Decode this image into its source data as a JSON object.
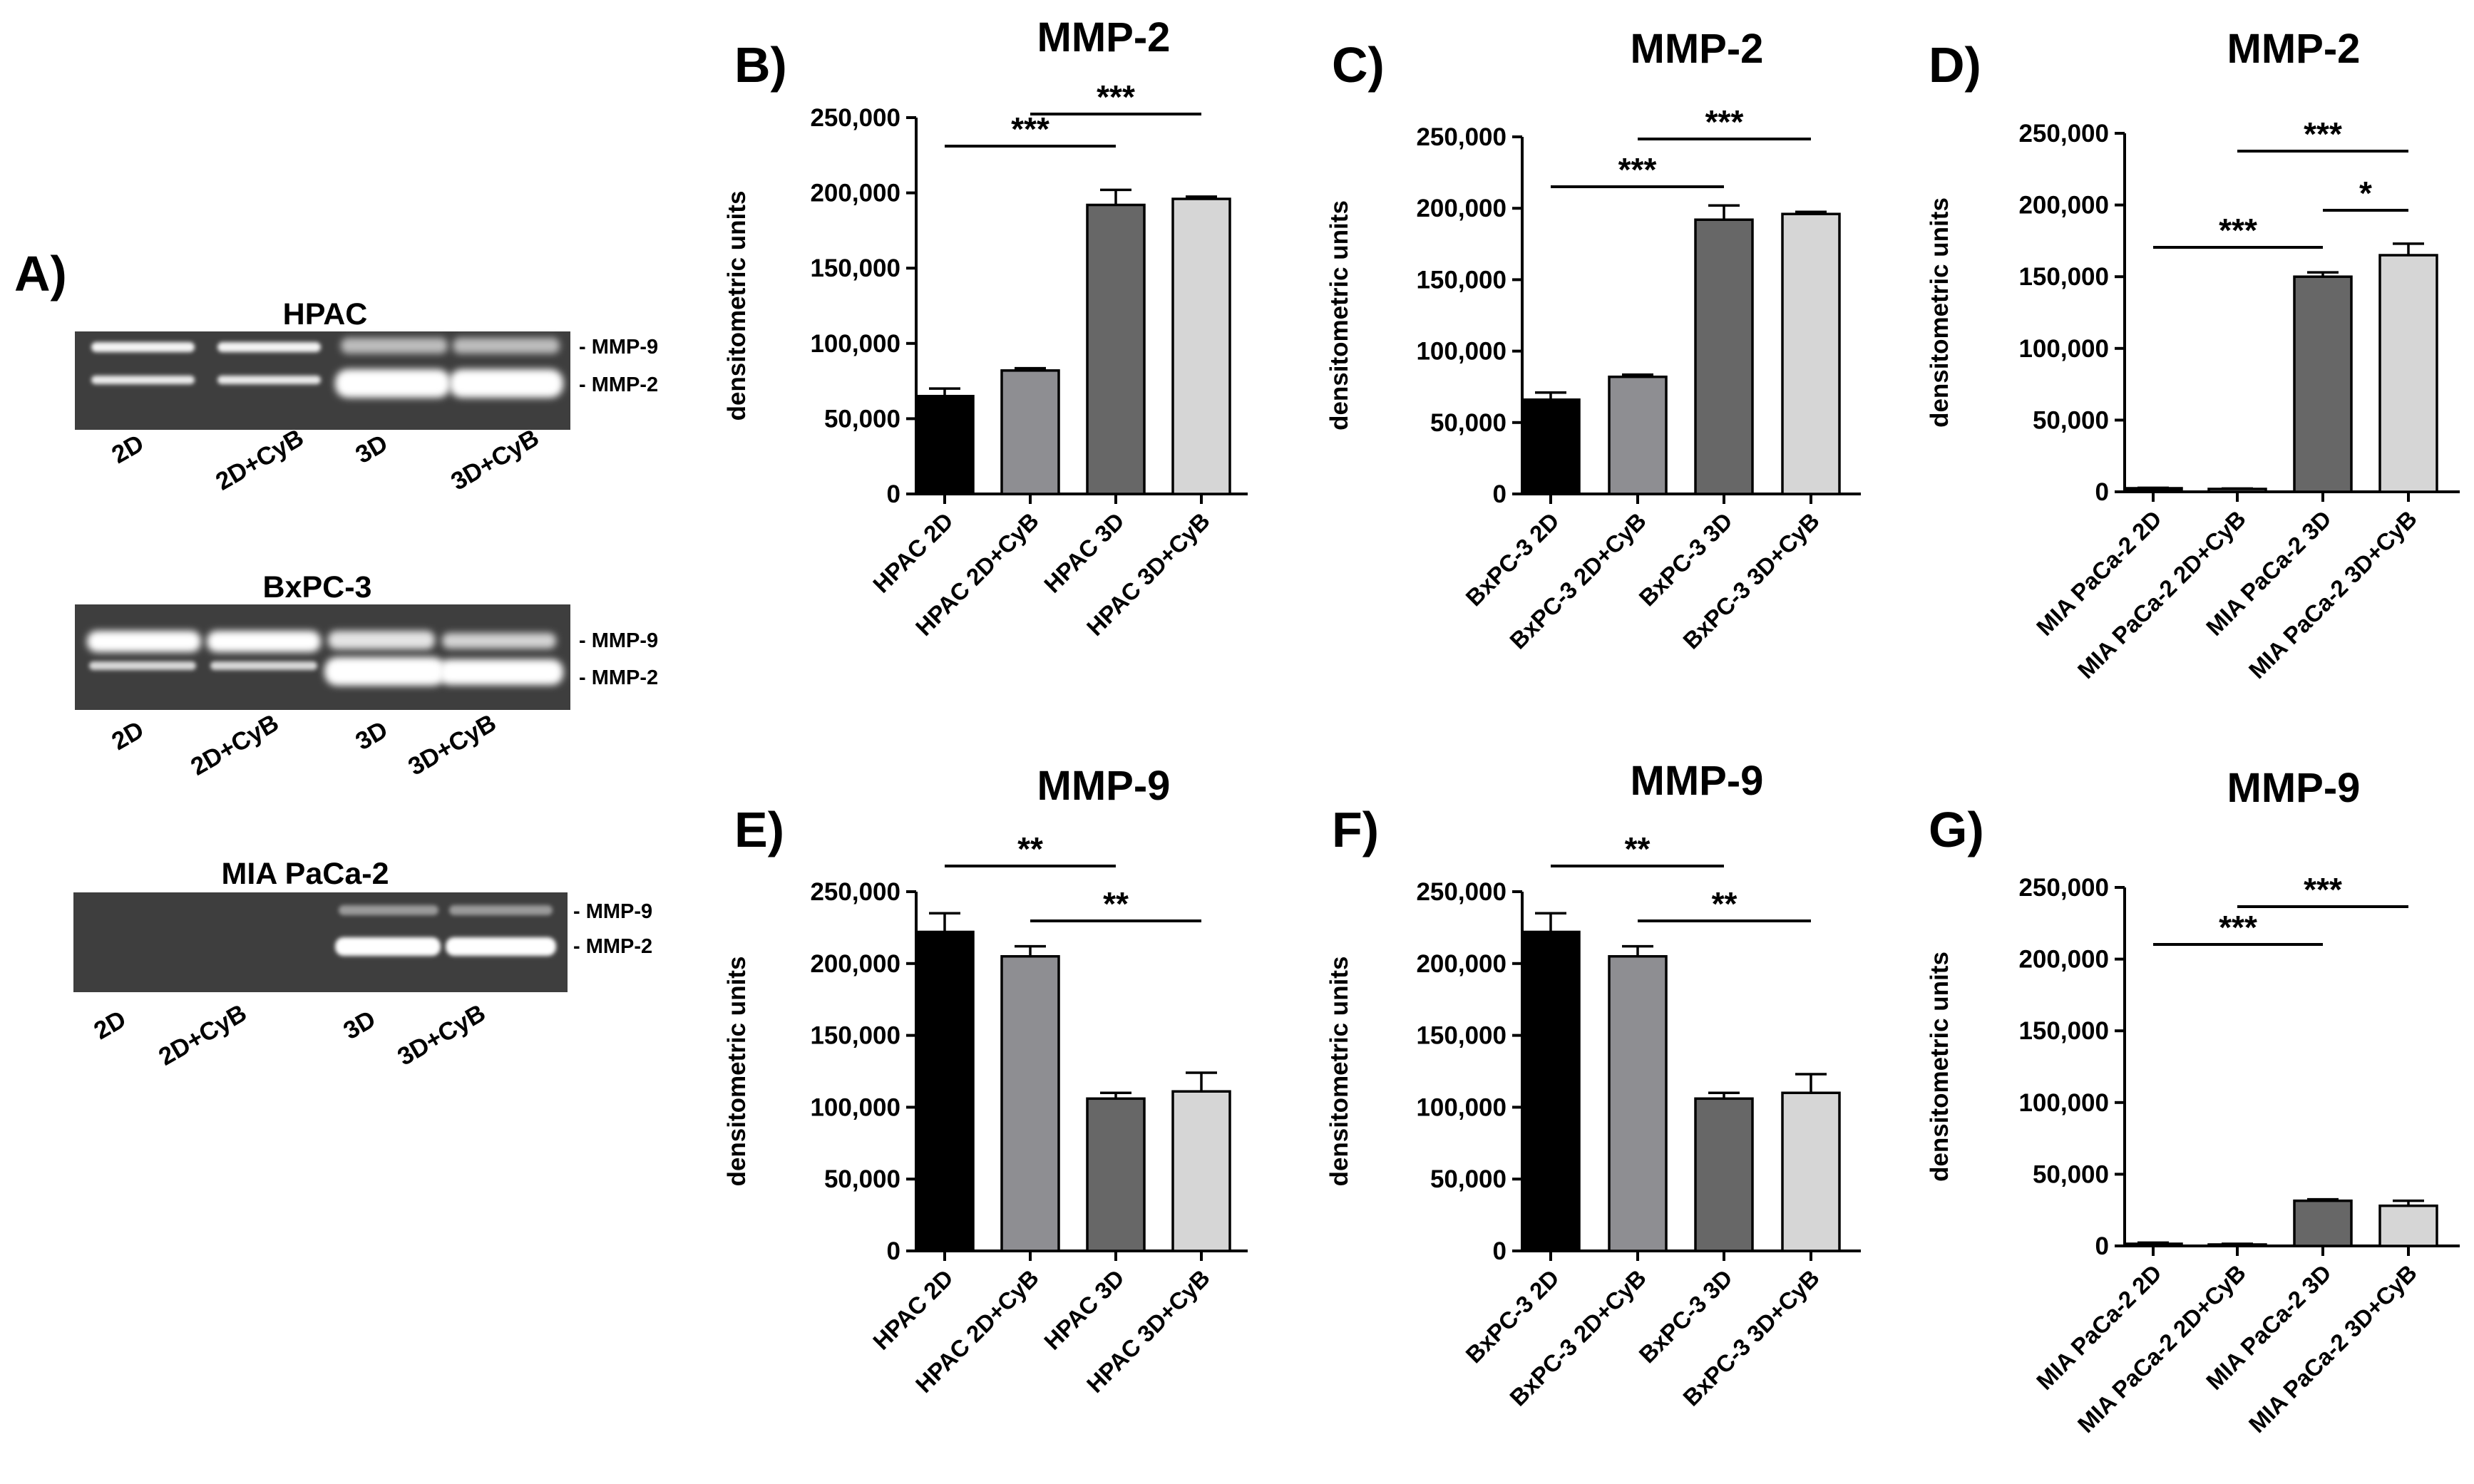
{
  "panel_a": {
    "label": "A)",
    "blots": [
      {
        "title": "HPAC",
        "lanes": [
          "2D",
          "2D+CyB",
          "3D",
          "3D+CyB"
        ],
        "band_labels": [
          "- MMP-9",
          "- MMP-2"
        ]
      },
      {
        "title": "BxPC-3",
        "lanes": [
          "2D",
          "2D+CyB",
          "3D",
          "3D+CyB"
        ],
        "band_labels": [
          "- MMP-9",
          "- MMP-2"
        ]
      },
      {
        "title": "MIA PaCa-2",
        "lanes": [
          "2D",
          "2D+CyB",
          "3D",
          "3D+CyB"
        ],
        "band_labels": [
          "- MMP-9",
          "- MMP-2"
        ]
      }
    ]
  },
  "chart_data": [
    {
      "panel": "B)",
      "type": "bar",
      "title": "MMP-2",
      "xlabel": "",
      "ylabel": "densitometric units",
      "categories": [
        "HPAC 2D",
        "HPAC 2D+CyB",
        "HPAC 3D",
        "HPAC 3D+CyB"
      ],
      "values": [
        65000,
        82000,
        192000,
        196000
      ],
      "errors": [
        5000,
        1500,
        10000,
        1500
      ],
      "ylim": [
        0,
        250000
      ],
      "yticks": [
        0,
        50000,
        100000,
        150000,
        200000,
        250000
      ],
      "ytick_labels": [
        "0",
        "50,000",
        "100,000",
        "150,000",
        "200,000",
        "250,000"
      ],
      "colors": [
        "#000000",
        "#8e8e92",
        "#676767",
        "#d6d6d6"
      ],
      "significance": [
        {
          "from": 0,
          "to": 2,
          "label": "***"
        },
        {
          "from": 1,
          "to": 3,
          "label": "***"
        }
      ]
    },
    {
      "panel": "C)",
      "type": "bar",
      "title": "MMP-2",
      "xlabel": "",
      "ylabel": "densitometric units",
      "categories": [
        "BxPC-3 2D",
        "BxPC-3 2D+CyB",
        "BxPC-3 3D",
        "BxPC-3 3D+CyB"
      ],
      "values": [
        66000,
        82000,
        192000,
        196000
      ],
      "errors": [
        5000,
        1500,
        10000,
        1500
      ],
      "ylim": [
        0,
        250000
      ],
      "yticks": [
        0,
        50000,
        100000,
        150000,
        200000,
        250000
      ],
      "ytick_labels": [
        "0",
        "50,000",
        "100,000",
        "150,000",
        "200,000",
        "250,000"
      ],
      "colors": [
        "#000000",
        "#8e8e92",
        "#676767",
        "#d6d6d6"
      ],
      "significance": [
        {
          "from": 0,
          "to": 2,
          "label": "***"
        },
        {
          "from": 1,
          "to": 3,
          "label": "***"
        }
      ]
    },
    {
      "panel": "D)",
      "type": "bar",
      "title": "MMP-2",
      "xlabel": "",
      "ylabel": "densitometric units",
      "categories": [
        "MIA PaCa-2 2D",
        "MIA PaCa-2 2D+CyB",
        "MIA PaCa-2 3D",
        "MIA PaCa-2 3D+CyB"
      ],
      "values": [
        2500,
        2000,
        150000,
        165000
      ],
      "errors": [
        300,
        300,
        3000,
        8000
      ],
      "ylim": [
        0,
        250000
      ],
      "yticks": [
        0,
        50000,
        100000,
        150000,
        200000,
        250000
      ],
      "ytick_labels": [
        "0",
        "50,000",
        "100,000",
        "150,000",
        "200,000",
        "250,000"
      ],
      "colors": [
        "#000000",
        "#8e8e92",
        "#676767",
        "#d6d6d6"
      ],
      "significance": [
        {
          "from": 2,
          "to": 3,
          "label": "*"
        },
        {
          "from": 0,
          "to": 2,
          "label": "***"
        },
        {
          "from": 1,
          "to": 3,
          "label": "***"
        }
      ]
    },
    {
      "panel": "E)",
      "type": "bar",
      "title": "MMP-9",
      "xlabel": "",
      "ylabel": "densitometric units",
      "categories": [
        "HPAC 2D",
        "HPAC 2D+CyB",
        "HPAC 3D",
        "HPAC 3D+CyB"
      ],
      "values": [
        222000,
        205000,
        106000,
        111000
      ],
      "errors": [
        13000,
        7000,
        4000,
        13000
      ],
      "ylim": [
        0,
        250000
      ],
      "yticks": [
        0,
        50000,
        100000,
        150000,
        200000,
        250000
      ],
      "ytick_labels": [
        "0",
        "50,000",
        "100,000",
        "150,000",
        "200,000",
        "250,000"
      ],
      "colors": [
        "#000000",
        "#8e8e92",
        "#676767",
        "#d6d6d6"
      ],
      "significance": [
        {
          "from": 1,
          "to": 3,
          "label": "**"
        },
        {
          "from": 0,
          "to": 2,
          "label": "**"
        }
      ]
    },
    {
      "panel": "F)",
      "type": "bar",
      "title": "MMP-9",
      "xlabel": "",
      "ylabel": "densitometric units",
      "categories": [
        "BxPC-3 2D",
        "BxPC-3 2D+CyB",
        "BxPC-3 3D",
        "BxPC-3 3D+CyB"
      ],
      "values": [
        222000,
        205000,
        106000,
        110000
      ],
      "errors": [
        13000,
        7000,
        4000,
        13000
      ],
      "ylim": [
        0,
        250000
      ],
      "yticks": [
        0,
        50000,
        100000,
        150000,
        200000,
        250000
      ],
      "ytick_labels": [
        "0",
        "50,000",
        "100,000",
        "150,000",
        "200,000",
        "250,000"
      ],
      "colors": [
        "#000000",
        "#8e8e92",
        "#676767",
        "#d6d6d6"
      ],
      "significance": [
        {
          "from": 1,
          "to": 3,
          "label": "**"
        },
        {
          "from": 0,
          "to": 2,
          "label": "**"
        }
      ]
    },
    {
      "panel": "G)",
      "type": "bar",
      "title": "MMP-9",
      "xlabel": "",
      "ylabel": "densitometric units",
      "categories": [
        "MIA PaCa-2 2D",
        "MIA PaCa-2 2D+CyB",
        "MIA PaCa-2 3D",
        "MIA PaCa-2 3D+CyB"
      ],
      "values": [
        1500,
        1000,
        31500,
        28000
      ],
      "errors": [
        800,
        500,
        1000,
        3500
      ],
      "ylim": [
        0,
        250000
      ],
      "yticks": [
        0,
        50000,
        100000,
        150000,
        200000,
        250000
      ],
      "ytick_labels": [
        "0",
        "50,000",
        "100,000",
        "150,000",
        "200,000",
        "250,000"
      ],
      "colors": [
        "#000000",
        "#8e8e92",
        "#676767",
        "#d6d6d6"
      ],
      "significance": [
        {
          "from": 0,
          "to": 2,
          "label": "***"
        },
        {
          "from": 1,
          "to": 3,
          "label": "***"
        }
      ]
    }
  ]
}
